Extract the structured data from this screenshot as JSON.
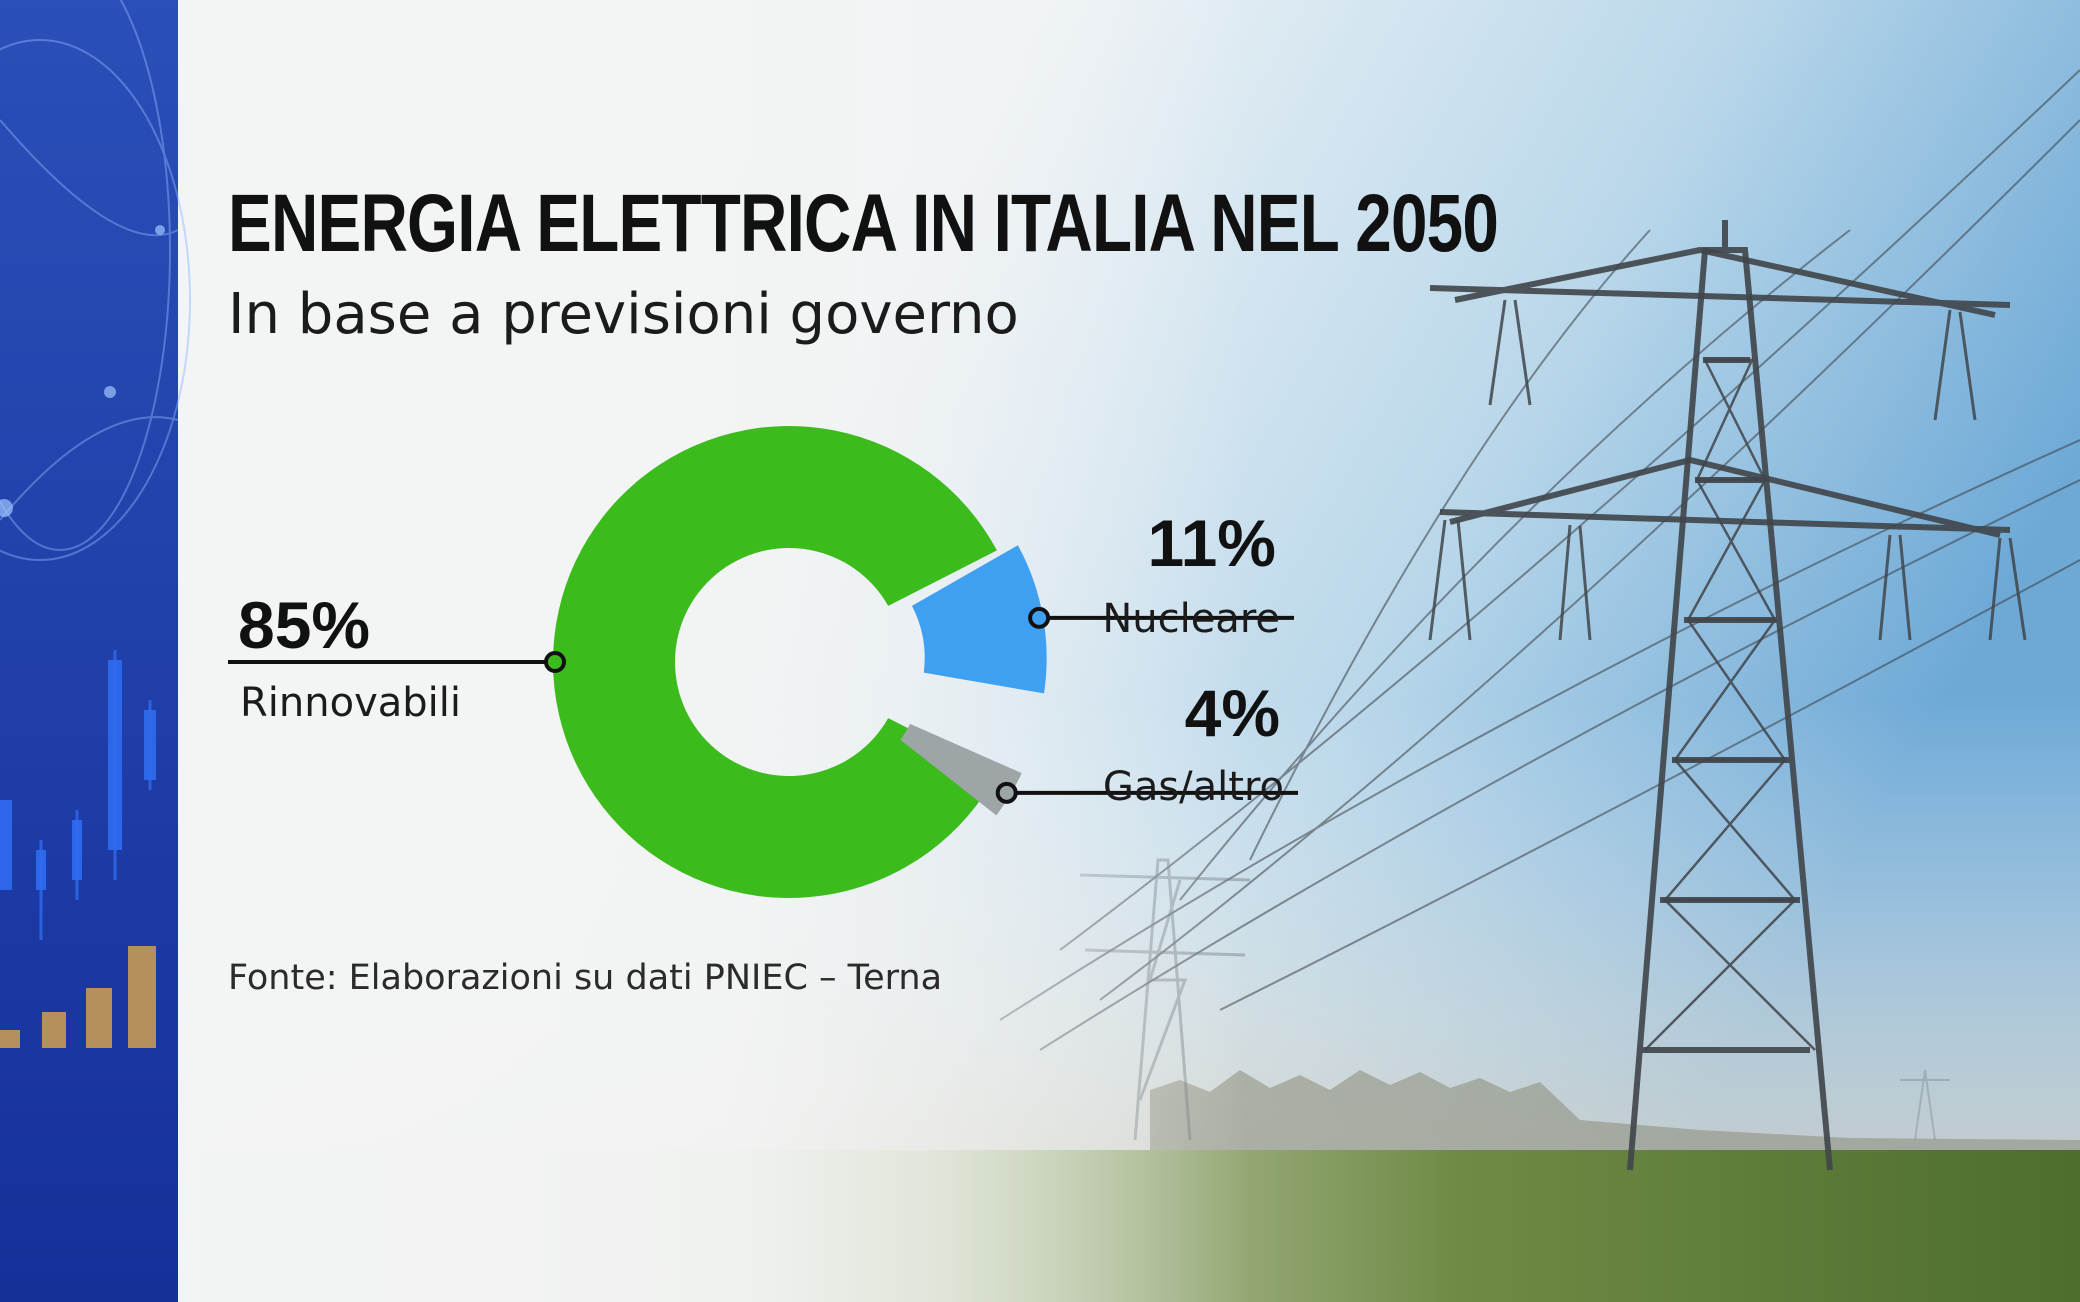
{
  "title": "ENERGIA ELETTRICA IN ITALIA NEL 2050",
  "subtitle": "In base a previsioni governo",
  "source": "Fonte: Elaborazioni su dati PNIEC – Terna",
  "chart_data": {
    "type": "pie",
    "variant": "donut",
    "title": "ENERGIA ELETTRICA IN ITALIA NEL 2050",
    "subtitle": "In base a previsioni governo",
    "unit": "%",
    "categories": [
      "Rinnovabili",
      "Nucleare",
      "Gas/altro"
    ],
    "values": [
      85,
      11,
      4
    ],
    "value_labels": [
      "85%",
      "11%",
      "4%"
    ],
    "colors": [
      "#3cbb1c",
      "#3fa0f2",
      "#9ea5a6"
    ],
    "legend": "none"
  },
  "colors": {
    "sidebar": "#1d3aa3",
    "rinnovabili": "#3cbb1c",
    "nucleare": "#3fa0f2",
    "gas_altro": "#9ea5a6"
  }
}
